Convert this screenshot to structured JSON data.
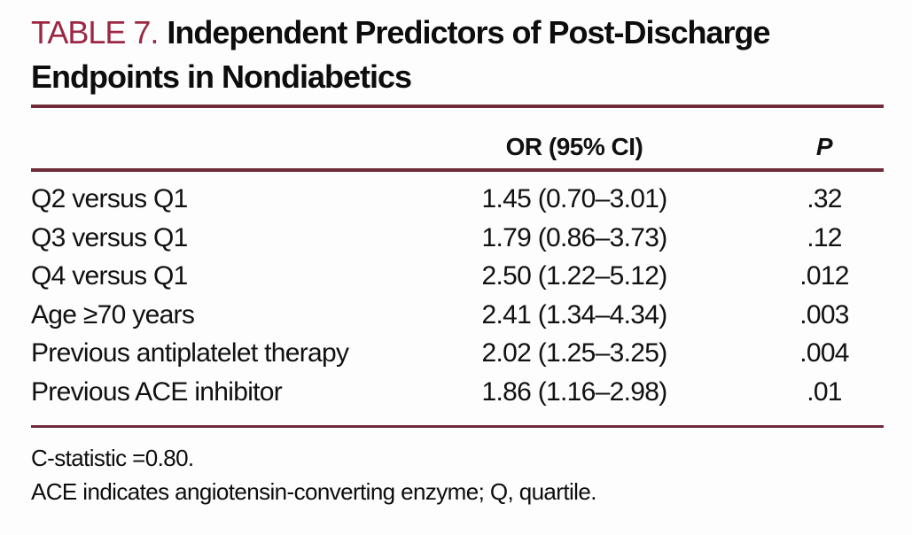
{
  "caption": {
    "label": "TABLE 7.",
    "title": "Independent Predictors of Post-Discharge Endpoints in Nondiabetics",
    "title_line1": "Independent Predictors of Post-Discharge",
    "title_line2": "Endpoints in Nondiabetics"
  },
  "table": {
    "columns": [
      "",
      "OR (95% CI)",
      "P"
    ],
    "rows": [
      {
        "predictor": "Q2 versus Q1",
        "or_ci": "1.45 (0.70–3.01)",
        "p": ".32"
      },
      {
        "predictor": "Q3 versus Q1",
        "or_ci": "1.79 (0.86–3.73)",
        "p": ".12"
      },
      {
        "predictor": "Q4 versus Q1",
        "or_ci": "2.50 (1.22–5.12)",
        "p": ".012"
      },
      {
        "predictor": "Age ≥70 years",
        "or_ci": "2.41 (1.34–4.34)",
        "p": ".003"
      },
      {
        "predictor": "Previous antiplatelet therapy",
        "or_ci": "2.02 (1.25–3.25)",
        "p": ".004"
      },
      {
        "predictor": "Previous ACE inhibitor",
        "or_ci": "1.86 (1.16–2.98)",
        "p": ".01"
      }
    ],
    "footnotes": [
      "C-statistic =0.80.",
      "ACE indicates angiotensin-converting enzyme; Q, quartile."
    ]
  },
  "colors": {
    "caption_label_red": "#9b2743",
    "rule_maroon": "#6f2b38",
    "text_black": "#111111",
    "background": "#fdfdfd"
  }
}
